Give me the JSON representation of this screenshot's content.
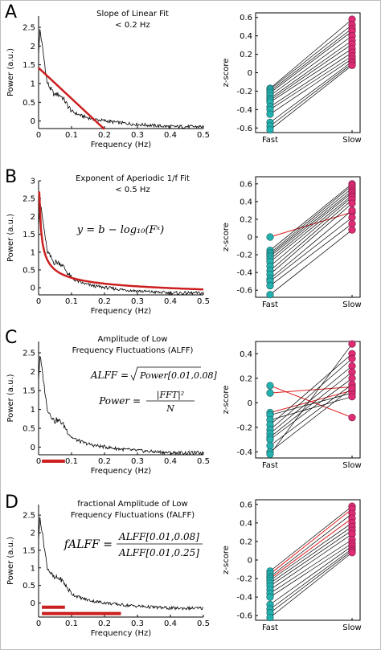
{
  "figure": {
    "panel_letters": [
      "A",
      "B",
      "C",
      "D"
    ],
    "left_ylabel": "Power (a.u.)",
    "left_xlabel": "Frequency (Hz)",
    "right_ylabel": "z-score",
    "group_labels": [
      "Fast",
      "Slow"
    ]
  },
  "annotations": {
    "A": {
      "title_lines": [
        "Slope of Linear Fit",
        "< 0.2 Hz"
      ]
    },
    "B": {
      "title_lines": [
        "Exponent of Aperiodic 1/f Fit",
        "< 0.5 Hz"
      ],
      "formula": "y = b − log₁₀(Fˣ)"
    },
    "C": {
      "title_lines": [
        "Amplitude of Low",
        "Frequency Fluctuations (ALFF)"
      ],
      "formula_1_lhs": "ALFF =",
      "formula_1_rhs": "Power[0.01,0.08]",
      "formula_2_lhs": "Power =",
      "formula_2_num": "|FFT|²",
      "formula_2_den": "N"
    },
    "D": {
      "title_lines": [
        "fractional Amplitude of Low",
        "Frequency Fluctuations (fALFF)"
      ],
      "formula_lhs": "fALFF =",
      "formula_num": "ALFF[0.01,0.08]",
      "formula_den": "ALFF[0.01,0.25]"
    }
  },
  "colors": {
    "fit_line": "#cc1f1f",
    "fast_marker": "#25b0b0",
    "slow_marker": "#dd2d74",
    "trace": "#000000",
    "highlight_line": "#e02020"
  },
  "chart_data": [
    {
      "id": "A_power",
      "type": "line",
      "xlabel": "Frequency (Hz)",
      "ylabel": "Power (a.u.)",
      "xlim": [
        0,
        0.5
      ],
      "ylim": [
        -0.2,
        2.8
      ],
      "xticks": [
        0,
        0.1,
        0.2,
        0.3,
        0.4,
        0.5
      ],
      "yticks": [
        0,
        0.5,
        1,
        1.5,
        2,
        2.5
      ],
      "fit": {
        "type": "linear",
        "x": [
          0,
          0.2
        ],
        "y": [
          1.42,
          -0.22
        ]
      }
    },
    {
      "id": "A_zscore",
      "type": "scatter",
      "ylabel": "z-score",
      "categories": [
        "Fast",
        "Slow"
      ],
      "ylim": [
        -0.65,
        0.65
      ],
      "yticks": [
        -0.6,
        -0.4,
        -0.2,
        0,
        0.2,
        0.4,
        0.6
      ],
      "pairs": [
        [
          -0.17,
          0.58
        ],
        [
          -0.18,
          0.52
        ],
        [
          -0.2,
          0.48
        ],
        [
          -0.22,
          0.45
        ],
        [
          -0.25,
          0.4
        ],
        [
          -0.28,
          0.35
        ],
        [
          -0.3,
          0.31
        ],
        [
          -0.32,
          0.26
        ],
        [
          -0.37,
          0.22
        ],
        [
          -0.4,
          0.18
        ],
        [
          -0.45,
          0.15
        ],
        [
          -0.54,
          0.12
        ],
        [
          -0.58,
          0.1
        ],
        [
          -0.62,
          0.08
        ]
      ]
    },
    {
      "id": "B_power",
      "type": "line",
      "xlabel": "Frequency (Hz)",
      "ylabel": "Power (a.u.)",
      "xlim": [
        0,
        0.5
      ],
      "ylim": [
        -0.2,
        3.0
      ],
      "xticks": [
        0,
        0.1,
        0.2,
        0.3,
        0.4,
        0.5
      ],
      "yticks": [
        0,
        0.5,
        1,
        1.5,
        2,
        2.5,
        3
      ],
      "fit": {
        "type": "aperiodic",
        "x_range": [
          0,
          0.5
        ],
        "y_start": 2.7,
        "y_end": -0.2
      }
    },
    {
      "id": "B_zscore",
      "type": "scatter",
      "ylabel": "z-score",
      "categories": [
        "Fast",
        "Slow"
      ],
      "ylim": [
        -0.68,
        0.68
      ],
      "yticks": [
        -0.6,
        -0.4,
        -0.2,
        0,
        0.2,
        0.4,
        0.6
      ],
      "pairs": [
        [
          0.0,
          0.28
        ],
        [
          -0.15,
          0.6
        ],
        [
          -0.18,
          0.58
        ],
        [
          -0.2,
          0.55
        ],
        [
          -0.22,
          0.52
        ],
        [
          -0.25,
          0.5
        ],
        [
          -0.28,
          0.47
        ],
        [
          -0.33,
          0.45
        ],
        [
          -0.38,
          0.42
        ],
        [
          -0.42,
          0.38
        ],
        [
          -0.47,
          0.3
        ],
        [
          -0.5,
          0.22
        ],
        [
          -0.55,
          0.15
        ],
        [
          -0.65,
          0.08
        ]
      ],
      "highlight_pairs": [
        0
      ]
    },
    {
      "id": "C_power",
      "type": "line",
      "xlabel": "Frequency (Hz)",
      "ylabel": "Power (a.u.)",
      "xlim": [
        0,
        0.5
      ],
      "ylim": [
        -0.2,
        2.8
      ],
      "xticks": [
        0,
        0.1,
        0.2,
        0.3,
        0.4,
        0.5
      ],
      "yticks": [
        0,
        0.5,
        1,
        1.5,
        2,
        2.5
      ],
      "bands": [
        {
          "x": [
            0.01,
            0.08
          ],
          "y": -0.37
        }
      ]
    },
    {
      "id": "C_zscore",
      "type": "scatter",
      "ylabel": "z-score",
      "categories": [
        "Fast",
        "Slow"
      ],
      "ylim": [
        -0.45,
        0.5
      ],
      "yticks": [
        -0.4,
        -0.2,
        0,
        0.2,
        0.4
      ],
      "pairs": [
        [
          0.14,
          -0.12
        ],
        [
          0.08,
          0.13
        ],
        [
          -0.08,
          0.1
        ],
        [
          -0.1,
          0.08
        ],
        [
          -0.14,
          0.05
        ],
        [
          -0.18,
          0.4
        ],
        [
          -0.22,
          0.36
        ],
        [
          -0.25,
          0.3
        ],
        [
          -0.28,
          0.25
        ],
        [
          -0.3,
          0.2
        ],
        [
          -0.35,
          0.15
        ],
        [
          -0.4,
          0.12
        ],
        [
          -0.42,
          0.48
        ]
      ],
      "highlight_pairs": [
        0,
        1,
        2
      ]
    },
    {
      "id": "D_power",
      "type": "line",
      "xlabel": "Frequency (Hz)",
      "ylabel": "Power (a.u.)",
      "xlim": [
        0,
        0.5
      ],
      "ylim": [
        -0.4,
        2.8
      ],
      "xticks": [
        0,
        0.1,
        0.2,
        0.3,
        0.4,
        0.5
      ],
      "yticks": [
        0,
        0.5,
        1,
        1.5,
        2,
        2.5
      ],
      "bands": [
        {
          "x": [
            0.01,
            0.08
          ],
          "y": -0.12
        },
        {
          "x": [
            0.01,
            0.25
          ],
          "y": -0.3
        }
      ]
    },
    {
      "id": "D_zscore",
      "type": "scatter",
      "ylabel": "z-score",
      "categories": [
        "Fast",
        "Slow"
      ],
      "ylim": [
        -0.65,
        0.65
      ],
      "yticks": [
        -0.6,
        -0.4,
        -0.2,
        0,
        0.2,
        0.4,
        0.6
      ],
      "pairs": [
        [
          -0.12,
          0.58
        ],
        [
          -0.15,
          0.55
        ],
        [
          -0.18,
          0.5
        ],
        [
          -0.2,
          0.45
        ],
        [
          -0.22,
          0.4
        ],
        [
          -0.25,
          0.36
        ],
        [
          -0.28,
          0.32
        ],
        [
          -0.32,
          0.28
        ],
        [
          -0.36,
          0.22
        ],
        [
          -0.4,
          0.18
        ],
        [
          -0.48,
          0.15
        ],
        [
          -0.53,
          0.12
        ],
        [
          -0.57,
          0.1
        ],
        [
          -0.62,
          0.08
        ]
      ],
      "highlight_pairs": [
        1,
        3
      ]
    }
  ]
}
